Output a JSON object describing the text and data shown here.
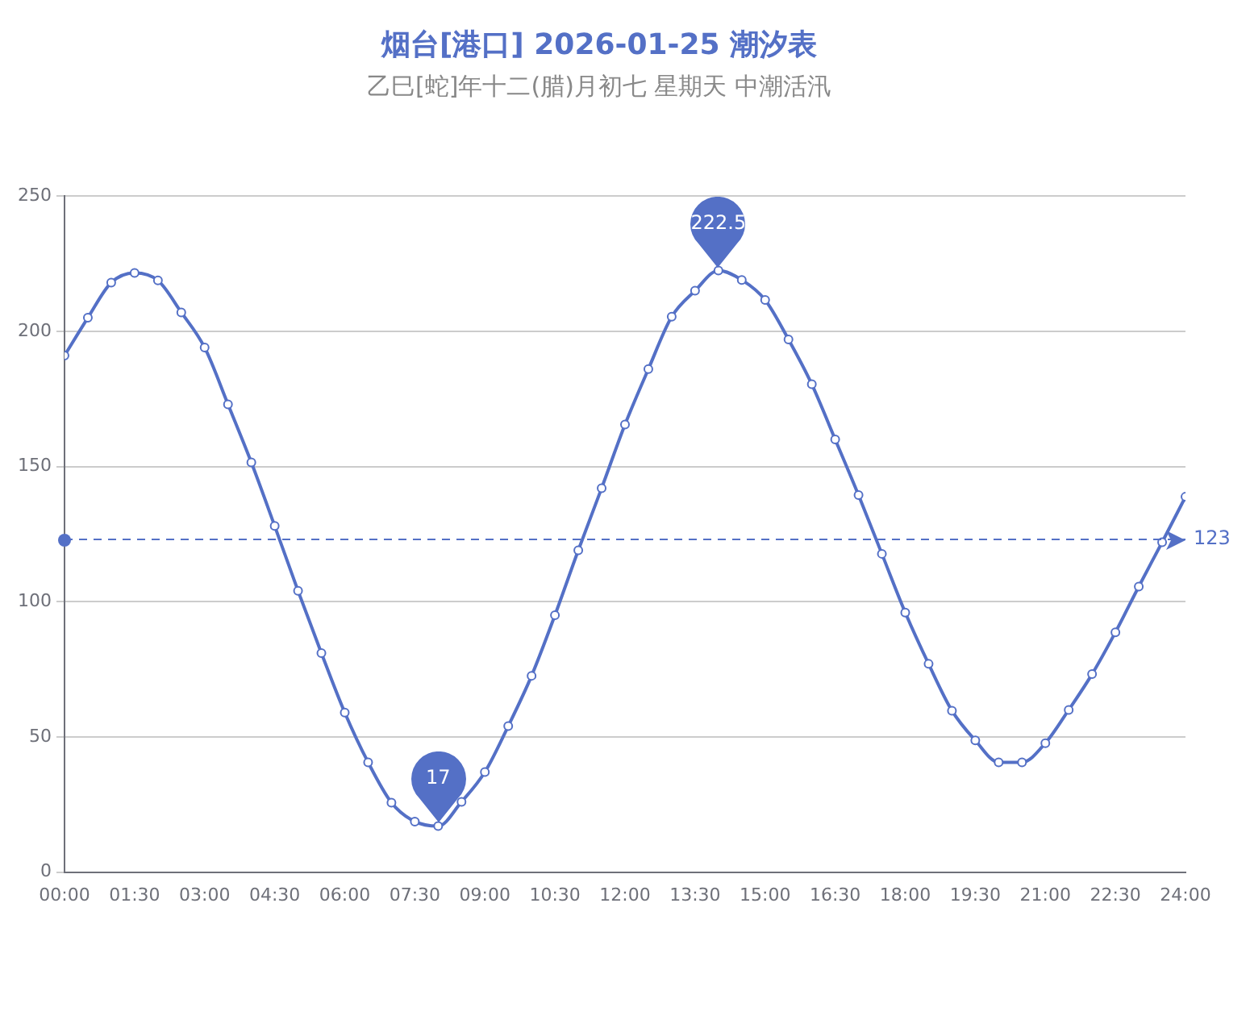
{
  "chart_data": {
    "type": "line",
    "title": "烟台[港口] 2026-01-25 潮汐表",
    "subtitle": "乙巳[蛇]年十二(腊)月初七 星期天 中潮活汛",
    "x": [
      0,
      0.5,
      1,
      1.5,
      2,
      2.5,
      3,
      3.5,
      4,
      4.5,
      5,
      5.5,
      6,
      6.5,
      7,
      7.5,
      8,
      8.5,
      9,
      9.5,
      10,
      10.5,
      11,
      11.5,
      12,
      12.5,
      13,
      13.5,
      14,
      14.5,
      15,
      15.5,
      16,
      16.5,
      17,
      17.5,
      18,
      18.5,
      19,
      19.5,
      20,
      20.5,
      21,
      21.5,
      22,
      22.5,
      23,
      23.5,
      24
    ],
    "series": [
      {
        "color": "#5470c6",
        "values": [
          191,
          205,
          218,
          221.6,
          218.8,
          207,
          194,
          173,
          151.5,
          128,
          104,
          81,
          59,
          40.6,
          25.7,
          18.7,
          17,
          26,
          37,
          54,
          72.6,
          95,
          119,
          142,
          165.5,
          186,
          205.4,
          215,
          222.5,
          219,
          211.6,
          197,
          180.4,
          160,
          139.4,
          117.7,
          96,
          77,
          59.7,
          48.7,
          40.6,
          40.6,
          47.7,
          60,
          73.2,
          88.7,
          105.6,
          122,
          138.8
        ]
      }
    ],
    "xlim": [
      0,
      24
    ],
    "xticks": [
      {
        "value": 0,
        "label": "00:00"
      },
      {
        "value": 1.5,
        "label": "01:30"
      },
      {
        "value": 3,
        "label": "03:00"
      },
      {
        "value": 4.5,
        "label": "04:30"
      },
      {
        "value": 6,
        "label": "06:00"
      },
      {
        "value": 7.5,
        "label": "07:30"
      },
      {
        "value": 9,
        "label": "09:00"
      },
      {
        "value": 10.5,
        "label": "10:30"
      },
      {
        "value": 12,
        "label": "12:00"
      },
      {
        "value": 13.5,
        "label": "13:30"
      },
      {
        "value": 15,
        "label": "15:00"
      },
      {
        "value": 16.5,
        "label": "16:30"
      },
      {
        "value": 18,
        "label": "18:00"
      },
      {
        "value": 19.5,
        "label": "19:30"
      },
      {
        "value": 21,
        "label": "21:00"
      },
      {
        "value": 22.5,
        "label": "22:30"
      },
      {
        "value": 24,
        "label": "24:00"
      }
    ],
    "ylim": [
      0,
      250
    ],
    "yticks": [
      0,
      50,
      100,
      150,
      200,
      250
    ],
    "grid": "y",
    "legend": false,
    "marker": "circle",
    "line_style": "solid",
    "ref_lines": [
      {
        "axis": "y",
        "value": 123,
        "label": "123",
        "color": "#5470c6",
        "line_style": "dashed"
      }
    ],
    "annotations": [
      {
        "text": "222.5",
        "x": 14,
        "y": 222.5
      },
      {
        "text": "17",
        "x": 8,
        "y": 17
      }
    ]
  }
}
